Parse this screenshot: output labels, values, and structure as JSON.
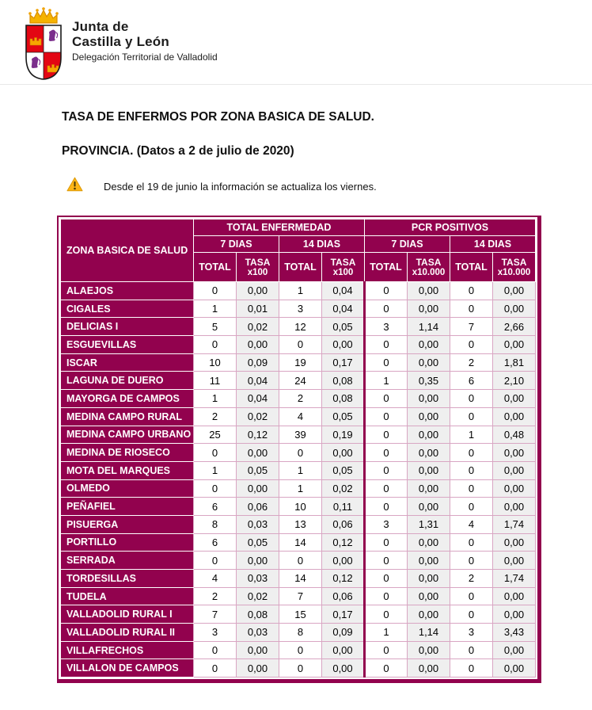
{
  "colors": {
    "accent": "#92024E",
    "row_stripe": "#EFEFEF",
    "cell_border": "#D9A6C3",
    "warning": "#FDB515",
    "shield_red": "#E30613",
    "shield_purple": "#7B2E8C",
    "crown_gold": "#F0A202"
  },
  "icons": {
    "logo": "coat-of-arms-icon",
    "warning": "warning-icon"
  },
  "header": {
    "org_line1": "Junta de",
    "org_line2": "Castilla y León",
    "department": "Delegación Territorial de Valladolid"
  },
  "titles": {
    "main": "TASA DE ENFERMOS POR ZONA BASICA DE SALUD.",
    "sub": "PROVINCIA. (Datos a 2 de julio de 2020)"
  },
  "notice": "Desde el 19 de junio la información se actualiza los viernes.",
  "table": {
    "zone_header": "ZONA BASICA DE SALUD",
    "group_enfermedad": "TOTAL ENFERMEDAD",
    "group_pcr": "PCR POSITIVOS",
    "period_7": "7 DIAS",
    "period_14": "14 DIAS",
    "total_label": "TOTAL",
    "rate_label": "TASA",
    "rate_sub_100": "x100",
    "rate_sub_10000": "x10.000",
    "rows": [
      {
        "zone": "ALAEJOS",
        "values": [
          "0",
          "0,00",
          "1",
          "0,04",
          "0",
          "0,00",
          "0",
          "0,00"
        ]
      },
      {
        "zone": "CIGALES",
        "values": [
          "1",
          "0,01",
          "3",
          "0,04",
          "0",
          "0,00",
          "0",
          "0,00"
        ]
      },
      {
        "zone": "DELICIAS I",
        "values": [
          "5",
          "0,02",
          "12",
          "0,05",
          "3",
          "1,14",
          "7",
          "2,66"
        ]
      },
      {
        "zone": "ESGUEVILLAS",
        "values": [
          "0",
          "0,00",
          "0",
          "0,00",
          "0",
          "0,00",
          "0",
          "0,00"
        ]
      },
      {
        "zone": "ISCAR",
        "values": [
          "10",
          "0,09",
          "19",
          "0,17",
          "0",
          "0,00",
          "2",
          "1,81"
        ]
      },
      {
        "zone": "LAGUNA DE DUERO",
        "values": [
          "11",
          "0,04",
          "24",
          "0,08",
          "1",
          "0,35",
          "6",
          "2,10"
        ]
      },
      {
        "zone": "MAYORGA DE CAMPOS",
        "values": [
          "1",
          "0,04",
          "2",
          "0,08",
          "0",
          "0,00",
          "0",
          "0,00"
        ]
      },
      {
        "zone": "MEDINA CAMPO RURAL",
        "values": [
          "2",
          "0,02",
          "4",
          "0,05",
          "0",
          "0,00",
          "0",
          "0,00"
        ]
      },
      {
        "zone": "MEDINA CAMPO URBANO",
        "values": [
          "25",
          "0,12",
          "39",
          "0,19",
          "0",
          "0,00",
          "1",
          "0,48"
        ]
      },
      {
        "zone": "MEDINA DE RIOSECO",
        "values": [
          "0",
          "0,00",
          "0",
          "0,00",
          "0",
          "0,00",
          "0",
          "0,00"
        ]
      },
      {
        "zone": "MOTA DEL MARQUES",
        "values": [
          "1",
          "0,05",
          "1",
          "0,05",
          "0",
          "0,00",
          "0",
          "0,00"
        ]
      },
      {
        "zone": "OLMEDO",
        "values": [
          "0",
          "0,00",
          "1",
          "0,02",
          "0",
          "0,00",
          "0",
          "0,00"
        ]
      },
      {
        "zone": "PEÑAFIEL",
        "values": [
          "6",
          "0,06",
          "10",
          "0,11",
          "0",
          "0,00",
          "0",
          "0,00"
        ]
      },
      {
        "zone": "PISUERGA",
        "values": [
          "8",
          "0,03",
          "13",
          "0,06",
          "3",
          "1,31",
          "4",
          "1,74"
        ]
      },
      {
        "zone": "PORTILLO",
        "values": [
          "6",
          "0,05",
          "14",
          "0,12",
          "0",
          "0,00",
          "0",
          "0,00"
        ]
      },
      {
        "zone": "SERRADA",
        "values": [
          "0",
          "0,00",
          "0",
          "0,00",
          "0",
          "0,00",
          "0",
          "0,00"
        ]
      },
      {
        "zone": "TORDESILLAS",
        "values": [
          "4",
          "0,03",
          "14",
          "0,12",
          "0",
          "0,00",
          "2",
          "1,74"
        ]
      },
      {
        "zone": "TUDELA",
        "values": [
          "2",
          "0,02",
          "7",
          "0,06",
          "0",
          "0,00",
          "0",
          "0,00"
        ]
      },
      {
        "zone": "VALLADOLID RURAL I",
        "values": [
          "7",
          "0,08",
          "15",
          "0,17",
          "0",
          "0,00",
          "0",
          "0,00"
        ]
      },
      {
        "zone": "VALLADOLID RURAL II",
        "values": [
          "3",
          "0,03",
          "8",
          "0,09",
          "1",
          "1,14",
          "3",
          "3,43"
        ]
      },
      {
        "zone": "VILLAFRECHOS",
        "values": [
          "0",
          "0,00",
          "0",
          "0,00",
          "0",
          "0,00",
          "0",
          "0,00"
        ]
      },
      {
        "zone": "VILLALON DE CAMPOS",
        "values": [
          "0",
          "0,00",
          "0",
          "0,00",
          "0",
          "0,00",
          "0",
          "0,00"
        ]
      }
    ]
  }
}
